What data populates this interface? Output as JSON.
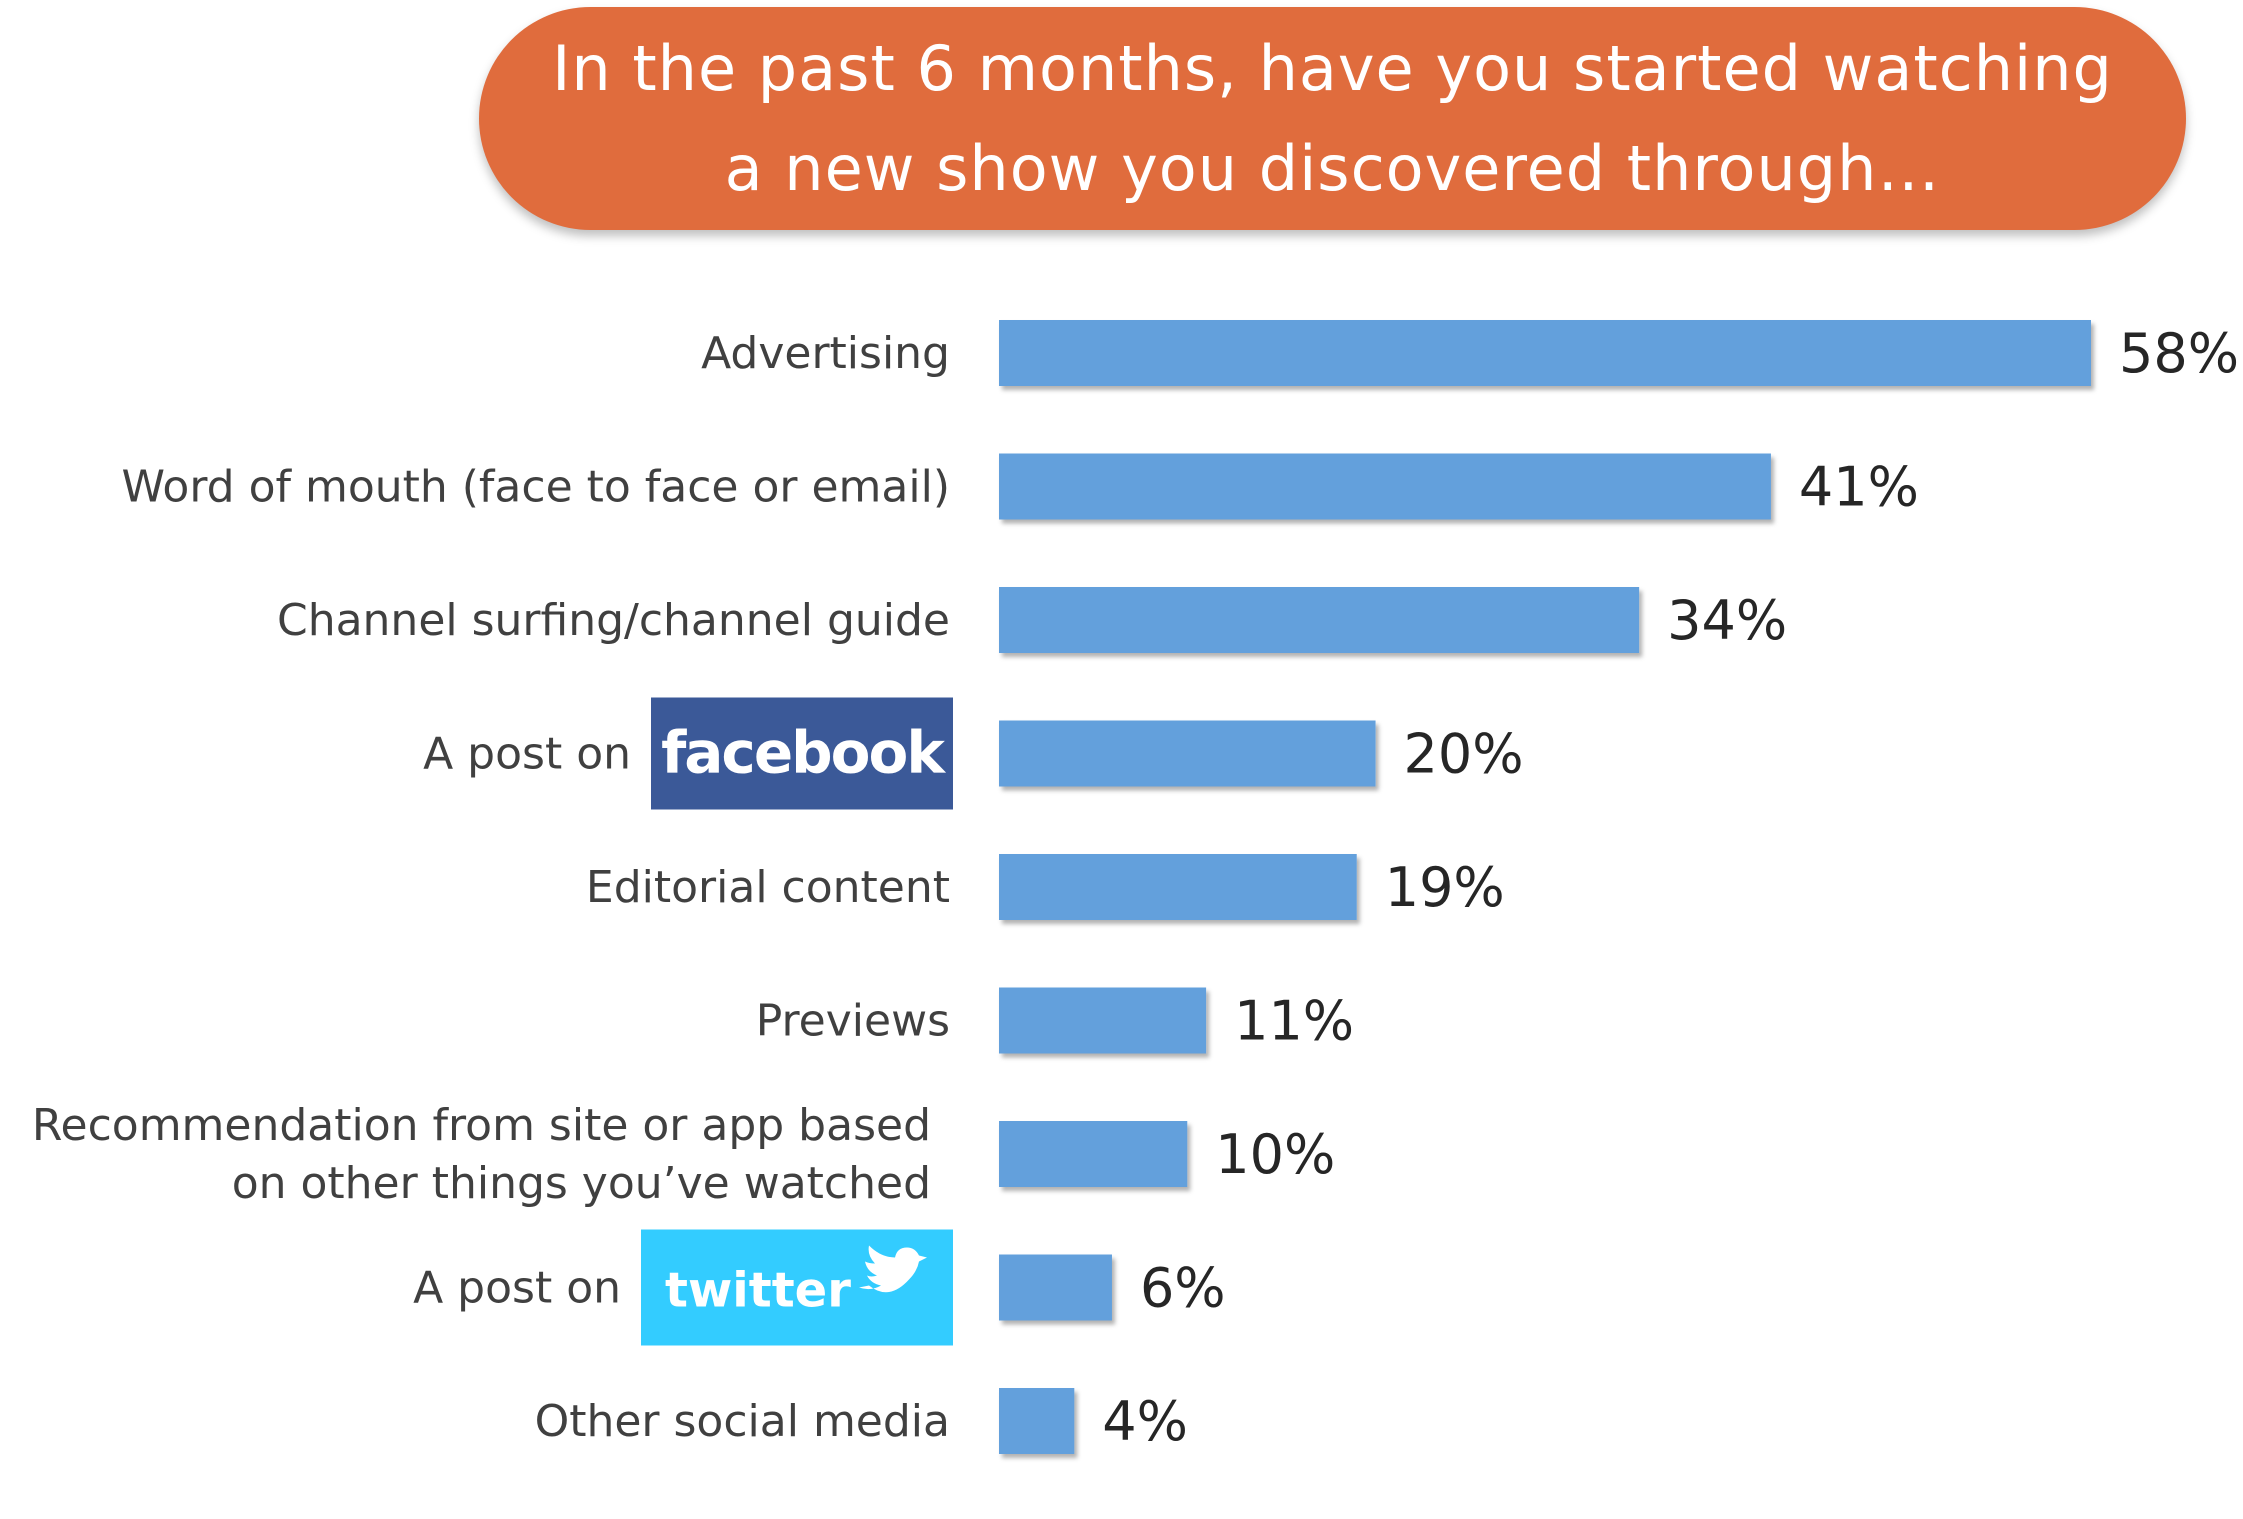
{
  "chart_data": {
    "type": "bar",
    "orientation": "horizontal",
    "title_lines": [
      "In the past 6 months, have you started watching",
      "a new show you discovered through…"
    ],
    "categories": [
      {
        "label_lines": [
          "Advertising"
        ]
      },
      {
        "label_lines": [
          "Word of mouth (face to face or email)"
        ]
      },
      {
        "label_lines": [
          "Channel surfing/channel guide"
        ]
      },
      {
        "label_lines": [
          "A post on"
        ],
        "logo": "facebook-logo",
        "logo_text": "facebook"
      },
      {
        "label_lines": [
          "Editorial content"
        ]
      },
      {
        "label_lines": [
          "Previews"
        ]
      },
      {
        "label_lines": [
          "Recommendation from site or app based",
          "on other things you’ve watched"
        ]
      },
      {
        "label_lines": [
          "A post on"
        ],
        "logo": "twitter-logo",
        "logo_text": "twitter"
      },
      {
        "label_lines": [
          "Other social media"
        ]
      }
    ],
    "values": [
      58,
      41,
      34,
      20,
      19,
      11,
      10,
      6,
      4
    ],
    "value_labels": [
      "58%",
      "41%",
      "34%",
      "20%",
      "19%",
      "11%",
      "10%",
      "6%",
      "4%"
    ],
    "xlim": [
      0,
      58
    ],
    "grid": false,
    "legend": "none"
  },
  "colors": {
    "title_background": "#E06C3D",
    "bar": "#64A0DC",
    "facebook": "#3B5998",
    "twitter": "#33CCFF"
  }
}
